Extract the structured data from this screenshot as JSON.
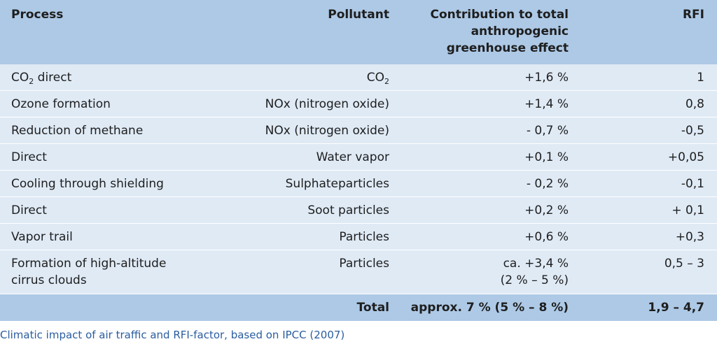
{
  "headers": {
    "process": "Process",
    "pollutant": "Pollutant",
    "contribution_l1": "Contribution to total",
    "contribution_l2": "anthropogenic",
    "contribution_l3": "greenhouse effect",
    "rfi": "RFI"
  },
  "rows": [
    {
      "process_a": "CO",
      "process_sub": "2",
      "process_b": " direct",
      "pollutant_a": "CO",
      "pollutant_sub": "2",
      "contribution": "+1,6 %",
      "rfi": "1"
    },
    {
      "process": "Ozone formation",
      "pollutant": "NOx (nitrogen oxide)",
      "contribution": "+1,4 %",
      "rfi": "0,8"
    },
    {
      "process": "Reduction of methane",
      "pollutant": "NOx (nitrogen oxide)",
      "contribution": "- 0,7 %",
      "rfi": "-0,5"
    },
    {
      "process": "Direct",
      "pollutant": "Water vapor",
      "contribution": "+0,1 %",
      "rfi": "+0,05"
    },
    {
      "process": "Cooling through shielding",
      "pollutant": "Sulphateparticles",
      "contribution": "- 0,2 %",
      "rfi": "-0,1"
    },
    {
      "process": "Direct",
      "pollutant": "Soot particles",
      "contribution": "+0,2 %",
      "rfi": "+ 0,1"
    },
    {
      "process": "Vapor trail",
      "pollutant": "Particles",
      "contribution": "+0,6 %",
      "rfi": "+0,3"
    },
    {
      "process_l1": "Formation of high-altitude",
      "process_l2": "cirrus clouds",
      "pollutant": "Particles",
      "contribution_l1": "ca. +3,4 %",
      "contribution_l2": "(2 % – 5 %)",
      "rfi": "0,5 – 3"
    }
  ],
  "total": {
    "label": "Total",
    "contribution": "approx. 7 % (5 % – 8 %)",
    "rfi": "1,9 – 4,7"
  },
  "caption": "Climatic impact of air traffic and RFI-factor, based on IPCC (2007)"
}
